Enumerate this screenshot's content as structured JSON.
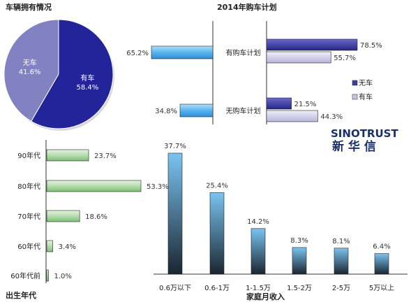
{
  "chart_data": [
    {
      "type": "pie",
      "title": "车辆拥有情况",
      "slices": [
        {
          "label": "有车",
          "value": 58.4,
          "display": "58.4%",
          "color": "#23249a"
        },
        {
          "label": "无车",
          "value": 41.6,
          "display": "41.6%",
          "color": "#8282c2"
        }
      ]
    },
    {
      "type": "bar",
      "orientation": "horizontal",
      "title": "2014年购车计划",
      "categories": [
        "有购车计划",
        "无购车计划"
      ],
      "totals": [
        {
          "value": 65.2,
          "display": "65.2%"
        },
        {
          "value": 34.8,
          "display": "34.8%"
        }
      ],
      "series": [
        {
          "name": "无车",
          "color": "#3c3c9c",
          "values": [
            78.5,
            21.5
          ],
          "display": [
            "78.5%",
            "21.5%"
          ]
        },
        {
          "name": "有车",
          "color": "#c8c4e6",
          "values": [
            55.7,
            44.3
          ],
          "display": [
            "55.7%",
            "44.3%"
          ]
        }
      ],
      "legend": "right"
    },
    {
      "type": "bar",
      "orientation": "horizontal",
      "title": "出生年代",
      "categories": [
        "90年代",
        "80年代",
        "70年代",
        "60年代",
        "60年代前"
      ],
      "values": [
        23.7,
        53.3,
        18.6,
        3.4,
        1.0
      ],
      "display": [
        "23.7%",
        "53.3%",
        "18.6%",
        "3.4%",
        "1.0%"
      ],
      "color": "#b9ddb2"
    },
    {
      "type": "bar",
      "orientation": "vertical",
      "title": "家庭月收入",
      "categories": [
        "0.6万以下",
        "0.6-1万",
        "1-1.5万",
        "1.5-2万",
        "2-5万",
        "5万以上"
      ],
      "values": [
        37.7,
        25.4,
        14.2,
        8.3,
        8.1,
        6.4
      ],
      "display": [
        "37.7%",
        "25.4%",
        "14.2%",
        "8.3%",
        "8.1%",
        "6.4%"
      ],
      "color": "#6fb6ea"
    }
  ],
  "logo": {
    "en": "SINOTRUST",
    "cn": "新 华 信"
  }
}
